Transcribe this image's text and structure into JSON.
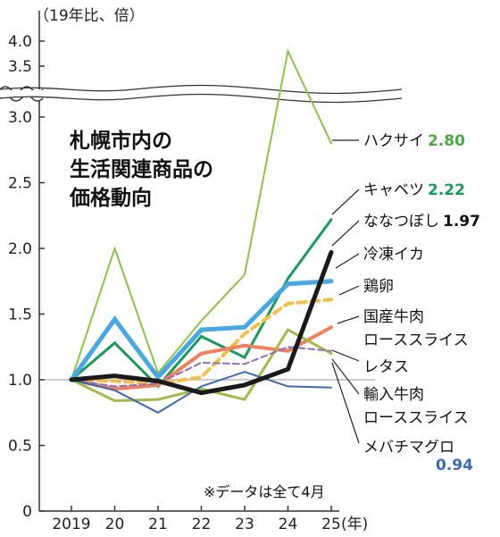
{
  "chart_data": {
    "type": "line",
    "title_lines": [
      "札幌市内の",
      "生活関連商品の",
      "価格動向"
    ],
    "unit_label": "（19年比、倍）",
    "x_unit": "(年)",
    "categories": [
      "2019",
      "20",
      "21",
      "22",
      "23",
      "24",
      "25"
    ],
    "y_ticks": [
      "0",
      "0.5",
      "1.0",
      "1.5",
      "2.0",
      "2.5",
      "3.0",
      "3.5",
      "4.0"
    ],
    "ylim": [
      0,
      4.0
    ],
    "axis_break_between": [
      3.0,
      3.5
    ],
    "note": "※データは全て4月",
    "series": [
      {
        "name": "ハクサイ",
        "value_label": "2.80",
        "color": "#8cc34a",
        "width": 2,
        "values": [
          1.0,
          2.0,
          1.05,
          1.45,
          1.8,
          3.8,
          2.8
        ]
      },
      {
        "name": "キャベツ",
        "value_label": "2.22",
        "color": "#1a9a5a",
        "width": 3,
        "values": [
          1.0,
          1.28,
          0.95,
          1.33,
          1.17,
          1.77,
          2.22
        ]
      },
      {
        "name": "冷凍イカ",
        "value_label": "",
        "color": "#4aa8e0",
        "width": 5,
        "values": [
          1.0,
          1.46,
          1.02,
          1.38,
          1.4,
          1.73,
          1.75
        ]
      },
      {
        "name": "鶏卵",
        "value_label": "",
        "color": "#f2c04a",
        "width": 4,
        "dashed": true,
        "values": [
          1.0,
          0.99,
          0.97,
          1.02,
          1.35,
          1.58,
          1.61
        ]
      },
      {
        "name": "国産牛肉ローススライス",
        "value_label": "",
        "color": "#f08060",
        "width": 4,
        "values": [
          1.0,
          0.93,
          0.96,
          1.2,
          1.26,
          1.22,
          1.4
        ]
      },
      {
        "name": "レタス",
        "value_label": "",
        "color": "#a6b84a",
        "width": 3,
        "values": [
          1.0,
          0.84,
          0.85,
          0.93,
          0.85,
          1.38,
          1.2
        ]
      },
      {
        "name": "輸入牛肉ローススライス",
        "value_label": "",
        "color": "#9070b8",
        "width": 2,
        "dashed": true,
        "values": [
          1.0,
          0.95,
          0.97,
          1.13,
          1.12,
          1.25,
          1.22
        ]
      },
      {
        "name": "メバチマグロ",
        "value_label": "0.94",
        "color": "#3a6ab0",
        "width": 2,
        "values": [
          1.0,
          0.92,
          0.75,
          0.95,
          1.06,
          0.95,
          0.94
        ]
      },
      {
        "name": "ななつぼし",
        "value_label": "1.97",
        "color": "#1a1a1a",
        "width": 5,
        "values": [
          1.0,
          1.03,
          0.99,
          0.9,
          0.96,
          1.08,
          1.97
        ]
      }
    ],
    "legend_value_colors": {
      "ハクサイ": "#4aaa3c",
      "キャベツ": "#1a9a5a",
      "ななつぼし": "#111111",
      "メバチマグロ": "#3a6ab0"
    }
  }
}
